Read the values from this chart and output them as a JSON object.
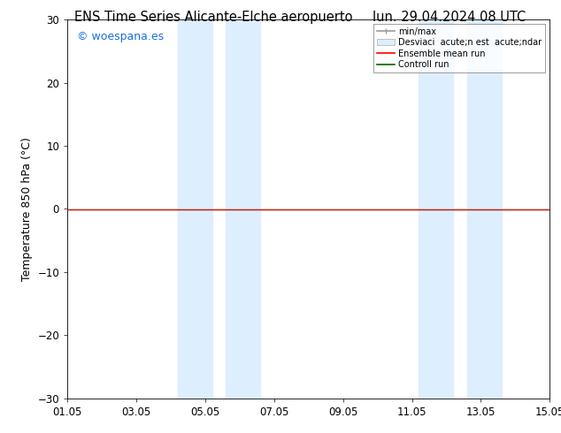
{
  "title_left": "ENS Time Series Alicante-Elche aeropuerto",
  "title_right": "lun. 29.04.2024 08 UTC",
  "ylabel": "Temperature 850 hPa (°C)",
  "ylim": [
    -30,
    30
  ],
  "yticks": [
    -30,
    -20,
    -10,
    0,
    10,
    20,
    30
  ],
  "xtick_labels": [
    "01.05",
    "03.05",
    "05.05",
    "07.05",
    "09.05",
    "11.05",
    "13.05",
    "15.05"
  ],
  "xtick_positions": [
    0,
    2,
    4,
    6,
    8,
    10,
    12,
    14
  ],
  "shaded_regions": [
    [
      3.2,
      4.2
    ],
    [
      4.6,
      5.6
    ],
    [
      10.2,
      11.2
    ],
    [
      11.6,
      12.6
    ]
  ],
  "shaded_color": "#ddeeff",
  "control_run_y": -0.1,
  "ensemble_mean_y": -0.1,
  "watermark_text": "© woespana.es",
  "watermark_color": "#1a6de0",
  "bg_color": "#ffffff",
  "legend_minmax_color": "#999999",
  "legend_std_color": "#ddeeff",
  "legend_std_edge": "#aaaaaa",
  "legend_ensemble_color": "#ff0000",
  "legend_control_color": "#006600",
  "title_fontsize": 10.5,
  "axis_fontsize": 9,
  "tick_fontsize": 8.5,
  "legend_labels": [
    "min/max",
    "Desviaci  acute;n est  acute;ndar",
    "Ensemble mean run",
    "Controll run"
  ]
}
